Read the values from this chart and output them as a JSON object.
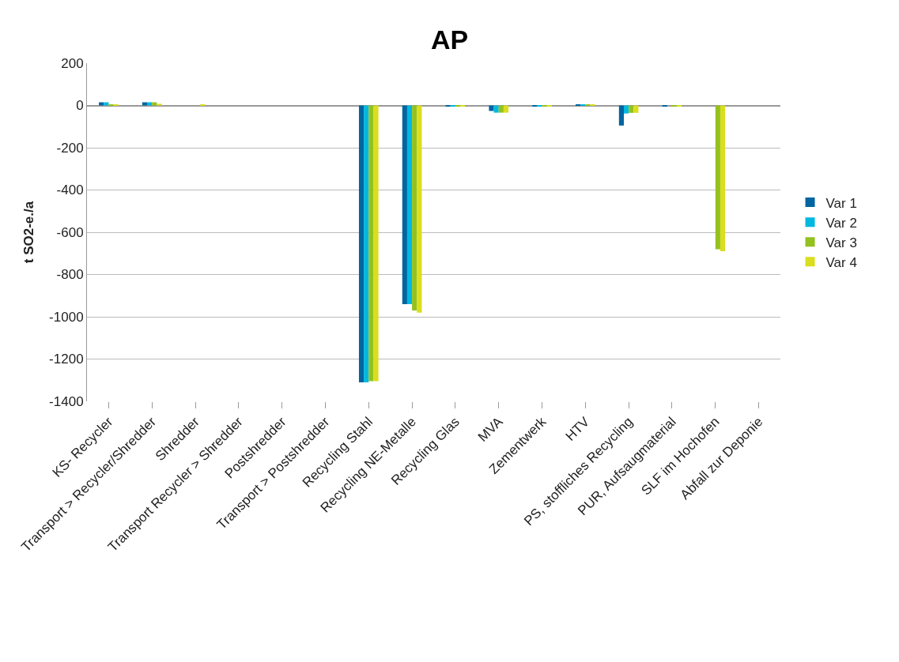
{
  "chart_data": {
    "type": "bar",
    "title": "AP",
    "ylabel": "t SO2-e./a",
    "categories": [
      "KS- Recycler",
      "Transport > Recycler/Shredder",
      "Shredder",
      "Transport Recycler > Shredder",
      "Postshredder",
      "Transport > Postshredder",
      "Recycling Stahl",
      "Recycling NE-Metalle",
      "Recycling Glas",
      "MVA",
      "Zementwerk",
      "HTV",
      "PS, stoffliches Recycling",
      "PUR, Aufsaugmaterial",
      "SLF im Hochofen",
      "Abfall zur Deponie"
    ],
    "series": [
      {
        "name": "Var 1",
        "color": "#0065a0",
        "values": [
          15,
          15,
          0,
          0,
          0,
          0,
          -1310,
          -940,
          -5,
          -26,
          -3,
          3,
          -95,
          -3,
          0,
          0
        ]
      },
      {
        "name": "Var 2",
        "color": "#00b8e0",
        "values": [
          15,
          15,
          0,
          0,
          0,
          0,
          -1310,
          -940,
          -5,
          -34,
          -3,
          3,
          -38,
          0,
          0,
          0
        ]
      },
      {
        "name": "Var 3",
        "color": "#94c11f",
        "values": [
          5,
          15,
          0,
          0,
          0,
          0,
          -1305,
          -970,
          -3,
          -34,
          -2,
          2,
          -35,
          -2,
          -680,
          0
        ]
      },
      {
        "name": "Var 4",
        "color": "#d9de1f",
        "values": [
          5,
          8,
          3,
          0,
          0,
          0,
          -1305,
          -980,
          -3,
          -34,
          -2,
          2,
          -35,
          -2,
          -690,
          0
        ]
      }
    ],
    "ylim": [
      -1400,
      200
    ],
    "yticks": [
      -1400,
      -1200,
      -1000,
      -800,
      -600,
      -400,
      -200,
      0,
      200
    ],
    "grid": "y",
    "legend": "right"
  }
}
